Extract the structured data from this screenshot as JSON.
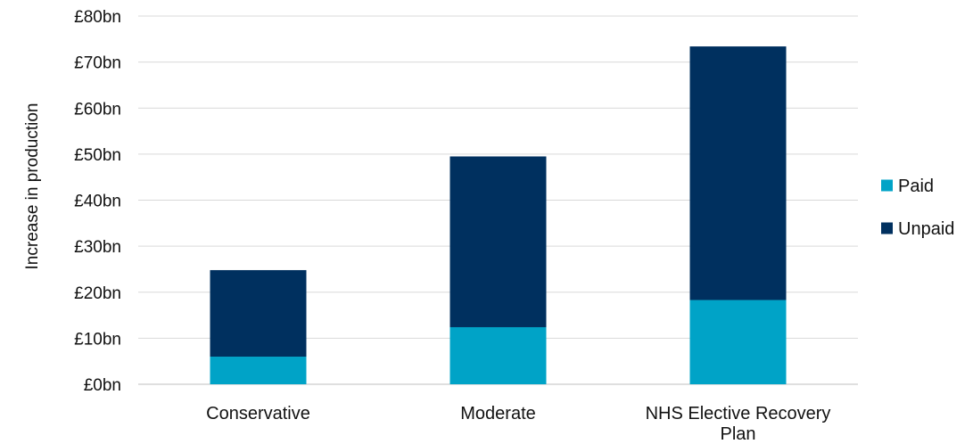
{
  "chart_data": {
    "type": "bar",
    "stacked": true,
    "categories": [
      "Conservative",
      "Moderate",
      "NHS Elective Recovery Plan"
    ],
    "series": [
      {
        "name": "Paid",
        "values": [
          6,
          12.4,
          18.3
        ],
        "color": "#00a3c7"
      },
      {
        "name": "Unpaid",
        "values": [
          18.8,
          37.1,
          55.1
        ],
        "color": "#00305f"
      }
    ],
    "ylabel": "Increase in production",
    "ylim": [
      0,
      80
    ],
    "yticks": [
      {
        "value": 0,
        "label": "£0bn"
      },
      {
        "value": 10,
        "label": "£10bn"
      },
      {
        "value": 20,
        "label": "£20bn"
      },
      {
        "value": 30,
        "label": "£30bn"
      },
      {
        "value": 40,
        "label": "£40bn"
      },
      {
        "value": 50,
        "label": "£50bn"
      },
      {
        "value": 60,
        "label": "£60bn"
      },
      {
        "value": 70,
        "label": "£70bn"
      },
      {
        "value": 80,
        "label": "£80bn"
      }
    ],
    "grid": true,
    "legend_position": "right"
  }
}
